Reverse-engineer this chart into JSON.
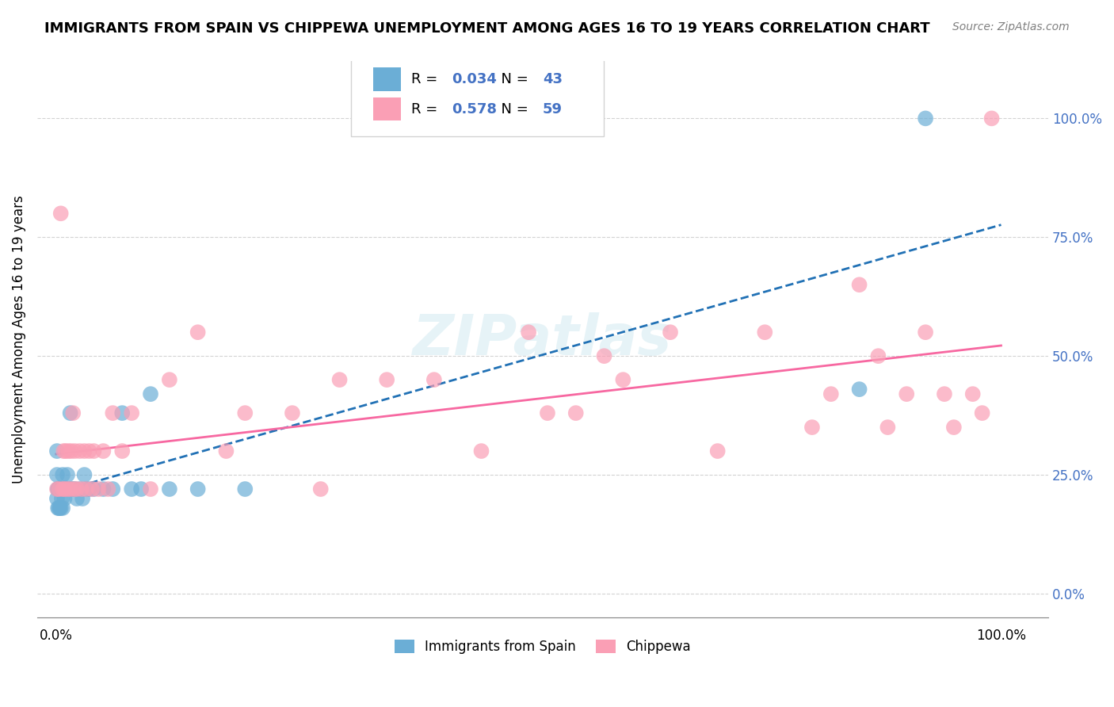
{
  "title": "IMMIGRANTS FROM SPAIN VS CHIPPEWA UNEMPLOYMENT AMONG AGES 16 TO 19 YEARS CORRELATION CHART",
  "source": "Source: ZipAtlas.com",
  "ylabel": "Unemployment Among Ages 16 to 19 years",
  "legend_1_label": "Immigrants from Spain",
  "legend_2_label": "Chippewa",
  "R1": 0.034,
  "N1": 43,
  "R2": 0.578,
  "N2": 59,
  "blue_color": "#6baed6",
  "pink_color": "#fa9fb5",
  "blue_line_color": "#2171b5",
  "pink_line_color": "#f768a1",
  "blue_x": [
    0.001,
    0.001,
    0.001,
    0.002,
    0.002,
    0.002,
    0.003,
    0.003,
    0.004,
    0.004,
    0.005,
    0.005,
    0.006,
    0.006,
    0.007,
    0.007,
    0.008,
    0.009,
    0.01,
    0.012,
    0.013,
    0.015,
    0.016,
    0.018,
    0.02,
    0.022,
    0.025,
    0.028,
    0.03,
    0.032,
    0.035,
    0.04,
    0.05,
    0.06,
    0.07,
    0.08,
    0.09,
    0.1,
    0.12,
    0.15,
    0.2,
    0.85,
    0.92
  ],
  "blue_y": [
    0.25,
    0.3,
    0.2,
    0.22,
    0.22,
    0.18,
    0.22,
    0.18,
    0.22,
    0.18,
    0.22,
    0.18,
    0.22,
    0.2,
    0.25,
    0.18,
    0.22,
    0.2,
    0.22,
    0.25,
    0.22,
    0.38,
    0.22,
    0.22,
    0.22,
    0.2,
    0.22,
    0.2,
    0.25,
    0.22,
    0.22,
    0.22,
    0.22,
    0.22,
    0.38,
    0.22,
    0.22,
    0.42,
    0.22,
    0.22,
    0.22,
    0.43,
    1.0
  ],
  "pink_x": [
    0.001,
    0.003,
    0.005,
    0.007,
    0.008,
    0.009,
    0.01,
    0.012,
    0.013,
    0.015,
    0.016,
    0.018,
    0.019,
    0.02,
    0.022,
    0.025,
    0.027,
    0.03,
    0.032,
    0.035,
    0.038,
    0.04,
    0.045,
    0.05,
    0.055,
    0.06,
    0.07,
    0.08,
    0.1,
    0.12,
    0.15,
    0.18,
    0.2,
    0.25,
    0.28,
    0.3,
    0.35,
    0.4,
    0.45,
    0.5,
    0.52,
    0.55,
    0.58,
    0.6,
    0.65,
    0.7,
    0.75,
    0.8,
    0.82,
    0.85,
    0.87,
    0.88,
    0.9,
    0.92,
    0.94,
    0.95,
    0.97,
    0.98,
    0.99
  ],
  "pink_y": [
    0.22,
    0.22,
    0.8,
    0.22,
    0.3,
    0.22,
    0.3,
    0.22,
    0.3,
    0.22,
    0.3,
    0.38,
    0.22,
    0.3,
    0.22,
    0.3,
    0.22,
    0.3,
    0.22,
    0.3,
    0.22,
    0.3,
    0.22,
    0.3,
    0.22,
    0.38,
    0.3,
    0.38,
    0.22,
    0.45,
    0.55,
    0.3,
    0.38,
    0.38,
    0.22,
    0.45,
    0.45,
    0.45,
    0.3,
    0.55,
    0.38,
    0.38,
    0.5,
    0.45,
    0.55,
    0.3,
    0.55,
    0.35,
    0.42,
    0.65,
    0.5,
    0.35,
    0.42,
    0.55,
    0.42,
    0.35,
    0.42,
    0.38,
    1.0
  ]
}
